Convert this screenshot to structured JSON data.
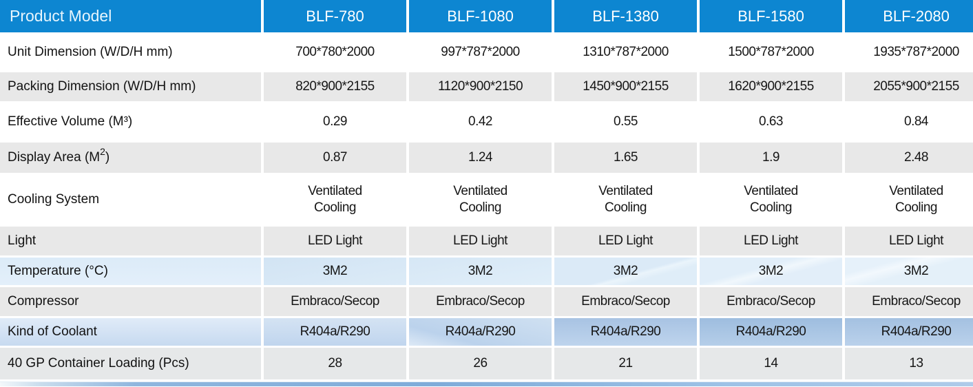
{
  "header": {
    "label": "Product Model",
    "models": [
      "BLF-780",
      "BLF-1080",
      "BLF-1380",
      "BLF-1580",
      "BLF-2080"
    ]
  },
  "rows": [
    {
      "label": "Unit Dimension (W/D/H mm)",
      "values": [
        "700*780*2000",
        "997*787*2000",
        "1310*787*2000",
        "1500*787*2000",
        "1935*787*2000"
      ]
    },
    {
      "label": "Packing Dimension (W/D/H mm)",
      "values": [
        "820*900*2155",
        "1120*900*2150",
        "1450*900*2155",
        "1620*900*2155",
        "2055*900*2155"
      ]
    },
    {
      "label": "Effective Volume (M³)",
      "values": [
        "0.29",
        "0.42",
        "0.55",
        "0.63",
        "0.84"
      ]
    },
    {
      "label_prefix": "Display Area (M",
      "label_sup": "2",
      "label_suffix": ")",
      "values": [
        "0.87",
        "1.24",
        "1.65",
        "1.9",
        "2.48"
      ]
    },
    {
      "label": "Cooling System",
      "values": [
        "Ventilated\nCooling",
        "Ventilated\nCooling",
        "Ventilated\nCooling",
        "Ventilated\nCooling",
        "Ventilated\nCooling"
      ]
    },
    {
      "label": "Light",
      "values": [
        "LED Light",
        "LED Light",
        "LED Light",
        "LED Light",
        "LED Light"
      ]
    },
    {
      "label": "Temperature (°C)",
      "values": [
        "3M2",
        "3M2",
        "3M2",
        "3M2",
        "3M2"
      ]
    },
    {
      "label": "Compressor",
      "values": [
        "Embraco/Secop",
        "Embraco/Secop",
        "Embraco/Secop",
        "Embraco/Secop",
        "Embraco/Secop"
      ]
    },
    {
      "label": "Kind of Coolant",
      "values": [
        "R404a/R290",
        "R404a/R290",
        "R404a/R290",
        "R404a/R290",
        "R404a/R290"
      ]
    },
    {
      "label": "40 GP Container Loading (Pcs)",
      "values": [
        "28",
        "26",
        "21",
        "14",
        "13"
      ]
    }
  ],
  "colors": {
    "header_bg": "#0d86d1",
    "alt_row_bg": "#e8e8e8",
    "coolant_row_blue": "#a4c1e1",
    "temp_row_blue": "#d6e7f5"
  }
}
